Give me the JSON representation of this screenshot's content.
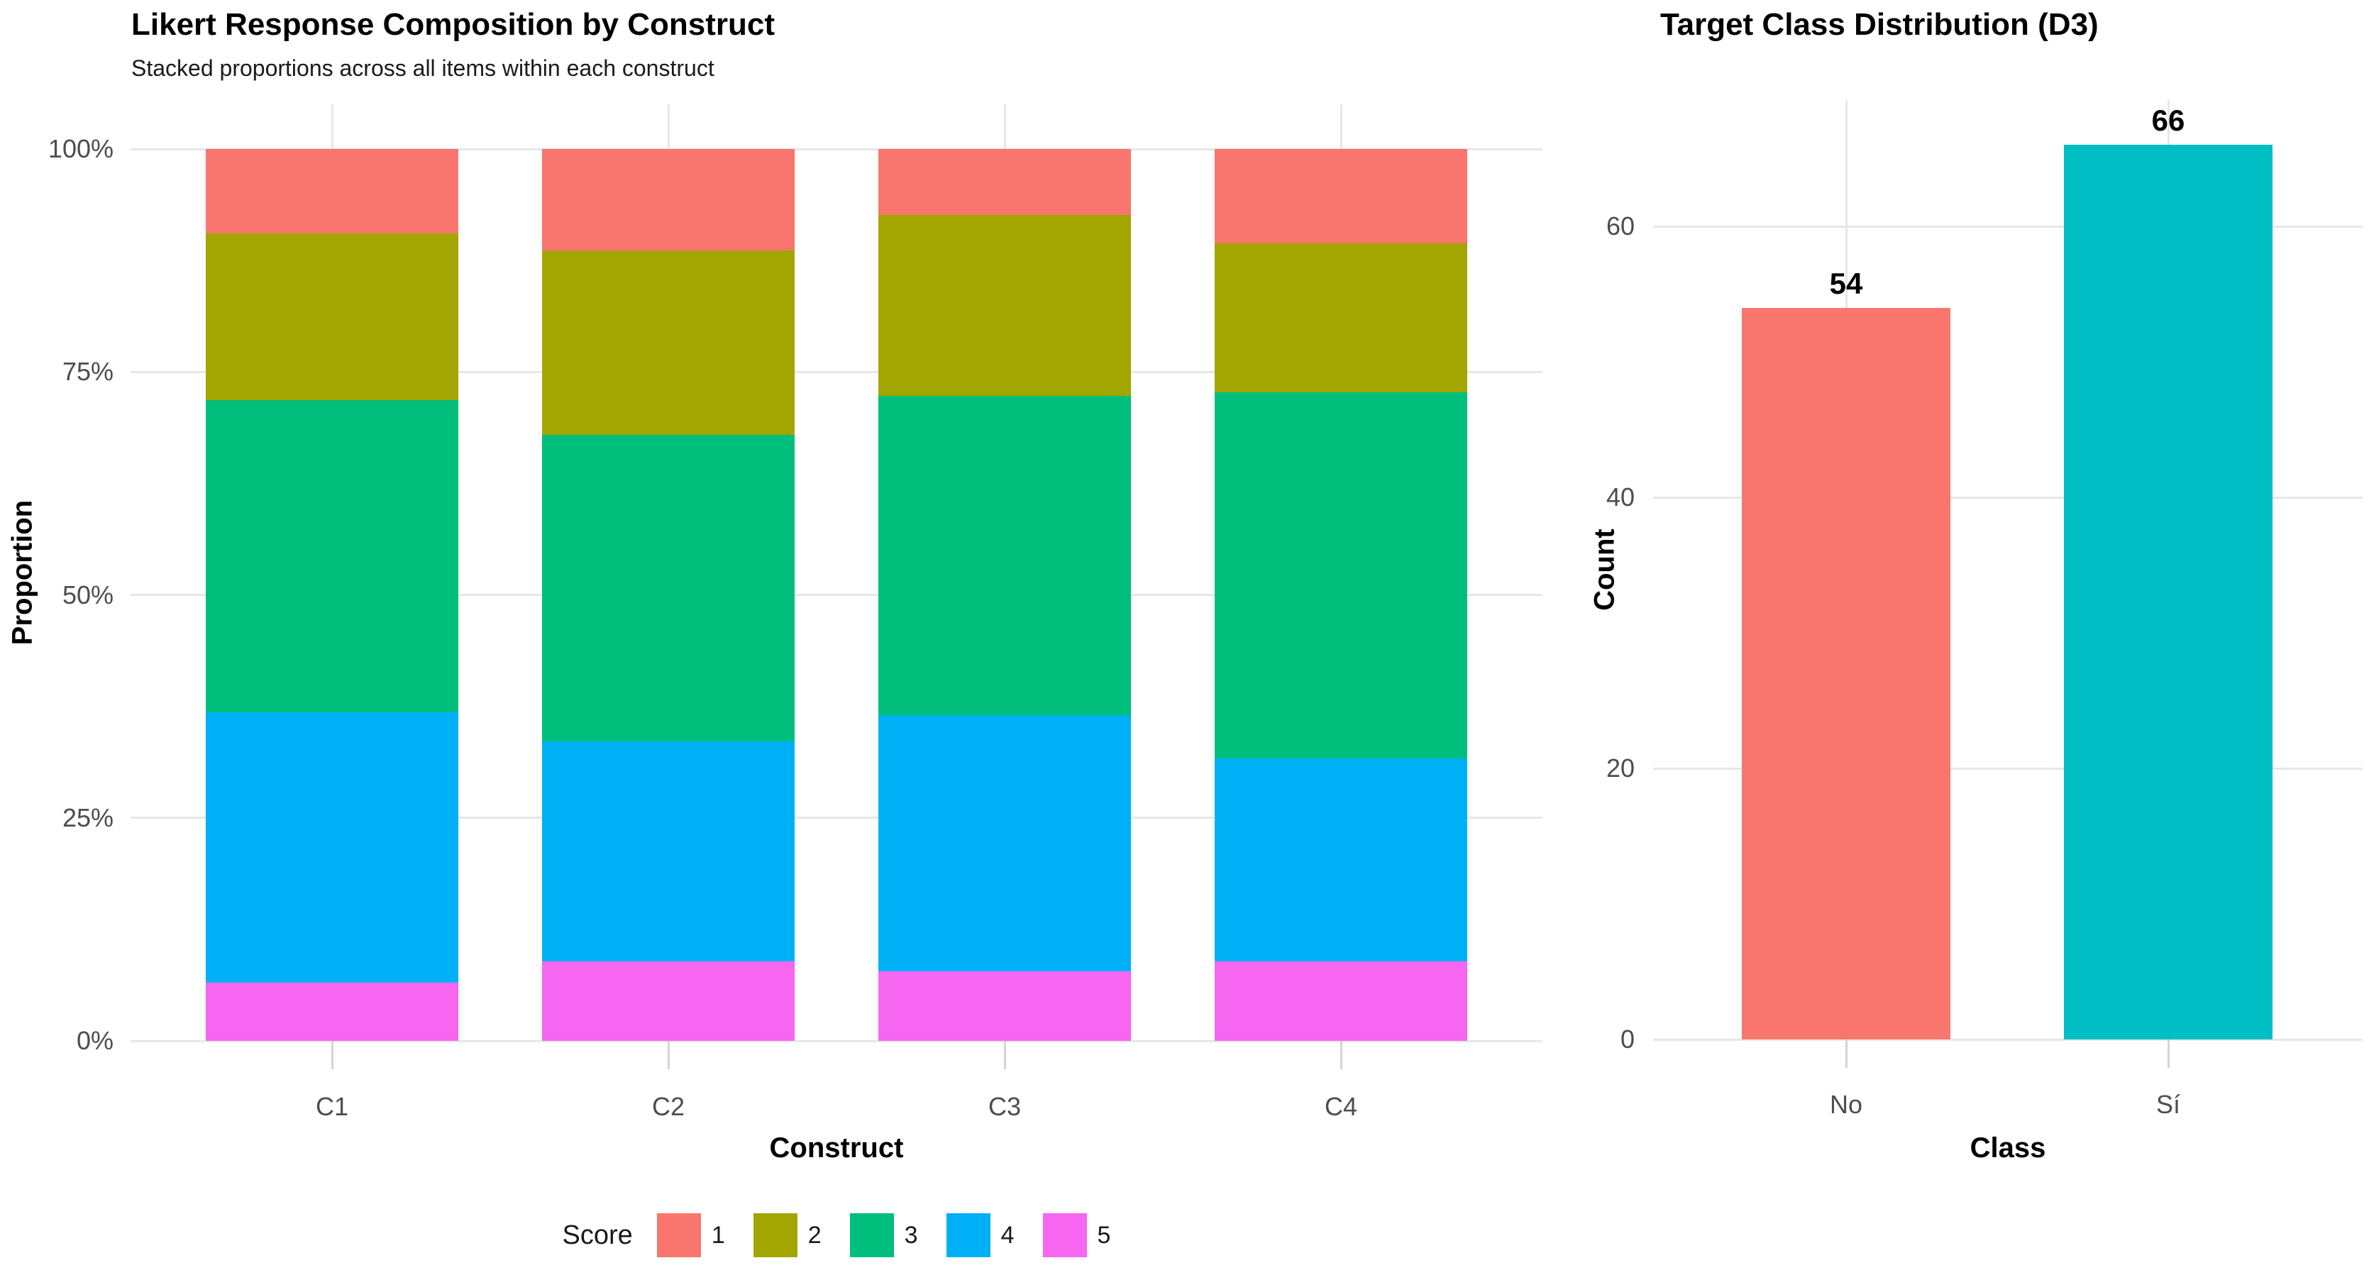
{
  "figure": {
    "background": "#FFFFFF",
    "grid_color": "#E7E7E7",
    "tick_color": "#D5D5D5",
    "axis_text_color": "#4D4D4D",
    "title_color": "#000000"
  },
  "chart_data": [
    {
      "type": "bar",
      "variant": "stacked-proportion",
      "title": "Likert Response Composition by Construct",
      "subtitle": "Stacked proportions across all items within each construct",
      "xlabel": "Construct",
      "ylabel": "Proportion",
      "categories": [
        "C1",
        "C2",
        "C3",
        "C4"
      ],
      "y_axis": {
        "unit": "percent",
        "range": [
          0,
          100
        ],
        "ticks": [
          {
            "label": "0%",
            "value": 0
          },
          {
            "label": "25%",
            "value": 25
          },
          {
            "label": "50%",
            "value": 50
          },
          {
            "label": "75%",
            "value": 75
          },
          {
            "label": "100%",
            "value": 100
          }
        ]
      },
      "legend": {
        "title": "Score",
        "position": "bottom"
      },
      "stack_order_top_to_bottom": [
        "1",
        "2",
        "3",
        "4",
        "5"
      ],
      "series": [
        {
          "name": "1",
          "color": "#F8766D",
          "values": [
            9.5,
            11.4,
            7.4,
            10.6
          ]
        },
        {
          "name": "2",
          "color": "#A3A500",
          "values": [
            18.7,
            20.7,
            20.3,
            16.7
          ]
        },
        {
          "name": "3",
          "color": "#00BF7D",
          "values": [
            35.0,
            34.3,
            35.8,
            41.0
          ]
        },
        {
          "name": "4",
          "color": "#00B0F6",
          "values": [
            30.3,
            24.7,
            28.7,
            22.8
          ]
        },
        {
          "name": "5",
          "color": "#F766F0",
          "values": [
            6.5,
            8.9,
            7.8,
            8.9
          ]
        }
      ],
      "grid": true,
      "minor_grid": false
    },
    {
      "type": "bar",
      "title": "Target Class Distribution (D3)",
      "xlabel": "Class",
      "ylabel": "Count",
      "categories": [
        "No",
        "Sí"
      ],
      "values": [
        54,
        66
      ],
      "bar_labels": [
        "54",
        "66"
      ],
      "bar_colors": [
        "#F8766D",
        "#00BFC4"
      ],
      "y_axis": {
        "range": [
          0,
          69.3
        ],
        "ticks": [
          {
            "label": "0",
            "value": 0
          },
          {
            "label": "20",
            "value": 20
          },
          {
            "label": "40",
            "value": 40
          },
          {
            "label": "60",
            "value": 60
          }
        ]
      },
      "grid": true,
      "minor_grid": false,
      "legend": "none"
    }
  ]
}
